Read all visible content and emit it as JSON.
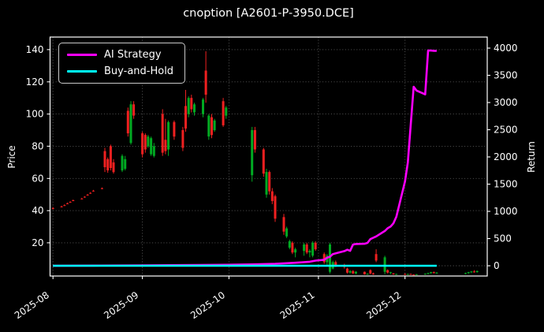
{
  "chart_data": {
    "type": "candlestick",
    "title": "cnoption [A2601-P-3950.DCE]",
    "background": "#000000",
    "grid": "dotted",
    "legend": {
      "position": "upper-left",
      "items": [
        "AI Strategy",
        "Buy-and-Hold"
      ]
    },
    "x_axis": {
      "epoch": "2025-08-01",
      "tick_labels": [
        "2025-08",
        "2025-09",
        "2025-10",
        "2025-11",
        "2025-12"
      ],
      "tick_dates": [
        "2025-08-01",
        "2025-09-01",
        "2025-10-01",
        "2025-11-01",
        "2025-12-01"
      ],
      "domain_days": [
        -1,
        150.5
      ]
    },
    "price_axis": {
      "label": "Price",
      "ticks": [
        20,
        40,
        60,
        80,
        100,
        120,
        140
      ],
      "range": [
        -0.6,
        147.8
      ]
    },
    "return_axis": {
      "label": "Return",
      "ticks": [
        0,
        500,
        1000,
        1500,
        2000,
        2500,
        3000,
        3500,
        4000
      ],
      "range": [
        -188,
        4203
      ],
      "zero_line": true
    },
    "candles": {
      "up_color": "#00aa22",
      "down_color": "#f02020",
      "ohlc": [
        [
          "2025-08-01",
          41.5,
          42.2,
          40.8,
          41.1
        ],
        [
          "2025-08-04",
          42.6,
          43.1,
          42.0,
          42.2
        ],
        [
          "2025-08-05",
          43.4,
          43.9,
          42.9,
          43.1
        ],
        [
          "2025-08-06",
          44.5,
          45.0,
          44.0,
          44.2
        ],
        [
          "2025-08-07",
          45.4,
          45.9,
          44.9,
          45.1
        ],
        [
          "2025-08-08",
          46.4,
          46.9,
          45.9,
          46.1
        ],
        [
          "2025-08-11",
          47.5,
          48.0,
          47.0,
          47.2
        ],
        [
          "2025-08-12",
          48.6,
          49.0,
          48.0,
          48.3
        ],
        [
          "2025-08-13",
          49.9,
          50.4,
          49.3,
          49.6
        ],
        [
          "2025-08-14",
          51.0,
          51.5,
          50.4,
          50.7
        ],
        [
          "2025-08-15",
          52.4,
          52.9,
          51.8,
          52.0
        ],
        [
          "2025-08-18",
          53.9,
          54.4,
          53.3,
          53.6
        ],
        [
          "2025-08-19",
          77,
          79,
          64,
          67
        ],
        [
          "2025-08-20",
          72,
          73,
          63.5,
          65
        ],
        [
          "2025-08-21",
          80,
          81,
          65,
          66.5
        ],
        [
          "2025-08-22",
          70,
          72,
          63,
          64
        ],
        [
          "2025-08-25",
          65,
          75,
          64,
          74
        ],
        [
          "2025-08-26",
          66,
          74,
          65,
          72
        ],
        [
          "2025-08-27",
          102,
          104,
          86,
          88
        ],
        [
          "2025-08-28",
          82,
          108,
          81,
          106
        ],
        [
          "2025-08-29",
          106,
          108,
          97,
          99
        ],
        [
          "2025-09-01",
          88,
          89,
          73,
          75
        ],
        [
          "2025-09-02",
          87,
          88,
          76,
          78
        ],
        [
          "2025-09-03",
          80,
          87,
          79,
          86
        ],
        [
          "2025-09-04",
          75,
          86,
          74,
          85
        ],
        [
          "2025-09-05",
          74,
          82,
          73,
          80
        ],
        [
          "2025-09-08",
          100,
          103,
          74,
          76
        ],
        [
          "2025-09-09",
          84,
          97,
          75,
          77
        ],
        [
          "2025-09-10",
          78,
          96,
          74,
          95
        ],
        [
          "2025-09-12",
          95,
          96,
          84,
          86
        ],
        [
          "2025-09-15",
          90,
          92,
          77,
          79
        ],
        [
          "2025-09-16",
          105,
          115,
          89,
          91
        ],
        [
          "2025-09-17",
          100,
          111,
          98,
          110
        ],
        [
          "2025-09-18",
          110,
          112,
          101,
          103
        ],
        [
          "2025-09-19",
          101,
          107,
          99,
          106
        ],
        [
          "2025-09-22",
          100,
          110,
          98,
          109
        ],
        [
          "2025-09-23",
          127,
          139,
          107,
          112
        ],
        [
          "2025-09-24",
          86,
          100,
          84,
          99
        ],
        [
          "2025-09-25",
          98,
          100,
          85,
          87
        ],
        [
          "2025-09-26",
          90,
          97,
          89,
          96
        ],
        [
          "2025-09-29",
          108,
          110,
          92,
          93
        ],
        [
          "2025-09-30",
          99,
          105,
          97,
          104
        ],
        [
          "2025-10-09",
          62,
          92,
          58,
          90
        ],
        [
          "2025-10-10",
          90,
          92,
          76,
          78
        ],
        [
          "2025-10-13",
          78,
          79,
          61,
          63
        ],
        [
          "2025-10-14",
          50,
          66,
          48,
          64
        ],
        [
          "2025-10-15",
          64,
          65,
          50,
          52
        ],
        [
          "2025-10-16",
          52,
          54,
          44,
          46
        ],
        [
          "2025-10-17",
          49,
          50,
          33,
          35
        ],
        [
          "2025-10-20",
          36,
          38,
          25,
          27
        ],
        [
          "2025-10-21",
          24,
          30,
          23,
          29
        ],
        [
          "2025-10-22",
          17,
          22,
          16,
          21
        ],
        [
          "2025-10-23",
          20,
          21,
          13,
          14
        ],
        [
          "2025-10-24",
          14,
          17,
          11,
          16
        ],
        [
          "2025-10-27",
          15,
          20,
          12,
          19
        ],
        [
          "2025-10-28",
          19,
          20,
          13,
          14
        ],
        [
          "2025-10-29",
          14,
          16,
          11,
          15
        ],
        [
          "2025-10-30",
          12,
          21,
          11,
          20
        ],
        [
          "2025-10-31",
          20,
          21,
          15,
          16
        ],
        [
          "2025-11-03",
          13,
          14,
          7,
          8
        ],
        [
          "2025-11-04",
          8,
          13,
          6,
          12
        ],
        [
          "2025-11-05",
          2,
          20,
          1,
          19
        ],
        [
          "2025-11-06",
          4,
          9,
          3.5,
          8
        ],
        [
          "2025-11-07",
          8,
          9,
          5,
          6
        ],
        [
          "2025-11-10",
          6,
          7,
          4,
          5
        ],
        [
          "2025-11-11",
          4,
          4.5,
          1,
          1.5
        ],
        [
          "2025-11-12",
          1.5,
          3,
          1,
          2.5
        ],
        [
          "2025-11-13",
          2.5,
          3,
          0.7,
          1
        ],
        [
          "2025-11-14",
          1,
          2.5,
          0.5,
          2
        ],
        [
          "2025-11-17",
          2,
          2.2,
          0.3,
          0.5
        ],
        [
          "2025-11-18",
          0.5,
          1,
          0.2,
          0.8
        ],
        [
          "2025-11-19",
          3,
          3.5,
          0.5,
          1
        ],
        [
          "2025-11-20",
          1,
          1.5,
          0.2,
          0.4
        ],
        [
          "2025-11-21",
          13,
          16,
          8,
          9
        ],
        [
          "2025-11-24",
          2,
          12,
          0.5,
          11
        ],
        [
          "2025-11-25",
          3,
          3.5,
          1,
          1.5
        ],
        [
          "2025-11-26",
          1.5,
          2,
          0.5,
          1.8
        ],
        [
          "2025-11-27",
          1,
          1.2,
          0.2,
          0.4
        ],
        [
          "2025-11-28",
          0.5,
          0.8,
          0.1,
          0.6
        ],
        [
          "2025-12-01",
          0.6,
          1,
          0.1,
          0.3
        ],
        [
          "2025-12-02",
          0.3,
          0.8,
          0.1,
          0.6
        ],
        [
          "2025-12-03",
          0.6,
          0.9,
          0.2,
          0.3
        ],
        [
          "2025-12-04",
          0.3,
          0.5,
          0.1,
          0.2
        ],
        [
          "2025-12-05",
          0.2,
          0.6,
          0.1,
          0.5
        ],
        [
          "2025-12-08",
          0.5,
          1,
          0.2,
          0.8
        ],
        [
          "2025-12-09",
          0.8,
          1.5,
          0.4,
          1.2
        ],
        [
          "2025-12-10",
          1.2,
          2,
          0.8,
          1.8
        ],
        [
          "2025-12-11",
          1.8,
          2.2,
          1,
          1.2
        ],
        [
          "2025-12-12",
          1.2,
          1.8,
          0.8,
          1.5
        ],
        [
          "2025-12-22",
          0.8,
          1.5,
          0.5,
          1.2
        ],
        [
          "2025-12-23",
          1.2,
          2,
          0.8,
          1.8
        ],
        [
          "2025-12-24",
          1.8,
          2.5,
          1.2,
          2.2
        ],
        [
          "2025-12-25",
          2.2,
          3,
          1.5,
          1.8
        ],
        [
          "2025-12-26",
          1.8,
          2.8,
          1.5,
          2.5
        ]
      ]
    },
    "series": [
      {
        "name": "AI Strategy",
        "color": "#ff00ff",
        "axis": "return",
        "points": [
          [
            "2025-08-01",
            0
          ],
          [
            "2025-08-15",
            3
          ],
          [
            "2025-09-01",
            8
          ],
          [
            "2025-09-15",
            12
          ],
          [
            "2025-09-30",
            18
          ],
          [
            "2025-10-09",
            25
          ],
          [
            "2025-10-17",
            35
          ],
          [
            "2025-10-24",
            55
          ],
          [
            "2025-10-29",
            75
          ],
          [
            "2025-10-31",
            95
          ],
          [
            "2025-11-03",
            110
          ],
          [
            "2025-11-04",
            150
          ],
          [
            "2025-11-05",
            165
          ],
          [
            "2025-11-06",
            215
          ],
          [
            "2025-11-07",
            230
          ],
          [
            "2025-11-10",
            270
          ],
          [
            "2025-11-11",
            295
          ],
          [
            "2025-11-12",
            275
          ],
          [
            "2025-11-13",
            390
          ],
          [
            "2025-11-14",
            400
          ],
          [
            "2025-11-17",
            405
          ],
          [
            "2025-11-18",
            420
          ],
          [
            "2025-11-19",
            490
          ],
          [
            "2025-11-20",
            515
          ],
          [
            "2025-11-21",
            540
          ],
          [
            "2025-11-24",
            640
          ],
          [
            "2025-11-25",
            690
          ],
          [
            "2025-11-26",
            720
          ],
          [
            "2025-11-27",
            780
          ],
          [
            "2025-11-28",
            900
          ],
          [
            "2025-12-01",
            1550
          ],
          [
            "2025-12-02",
            1900
          ],
          [
            "2025-12-03",
            2600
          ],
          [
            "2025-12-04",
            3290
          ],
          [
            "2025-12-05",
            3220
          ],
          [
            "2025-12-08",
            3150
          ],
          [
            "2025-12-09",
            3955
          ],
          [
            "2025-12-10",
            3955
          ],
          [
            "2025-12-11",
            3950
          ],
          [
            "2025-12-12",
            3950
          ]
        ]
      },
      {
        "name": "Buy-and-Hold",
        "color": "#00ffff",
        "axis": "return",
        "points": [
          [
            "2025-08-01",
            0
          ],
          [
            "2025-12-12",
            0
          ]
        ]
      }
    ]
  }
}
